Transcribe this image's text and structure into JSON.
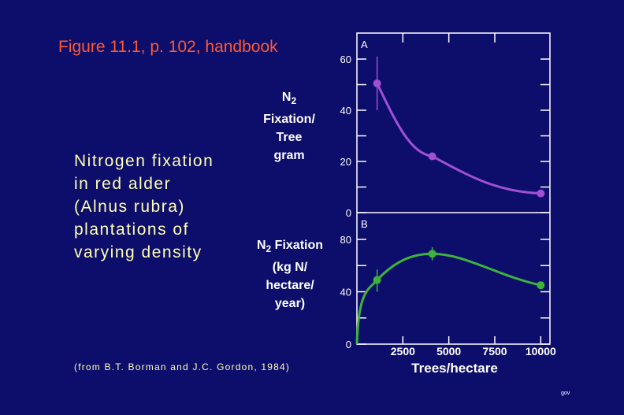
{
  "figure_title": "Figure 11.1, p. 102, handbook",
  "subject_lines": [
    "Nitrogen fixation",
    "in red alder",
    "(Alnus rubra)",
    "plantations of",
    "varying density"
  ],
  "source_note": "(from B.T. Borman and J.C. Gordon, 1984)",
  "corner_text": "gov",
  "chart_data": [
    {
      "type": "line",
      "panel_label": "A",
      "ylabel_lines": [
        "Fixation/",
        "Tree",
        "gram"
      ],
      "ylabel_prefix": "N",
      "ylabel_sub": "2",
      "ylim": [
        0,
        60
      ],
      "yticks": [
        0,
        20,
        40,
        60
      ],
      "xlim": [
        0,
        10500
      ],
      "color": "#a050d2",
      "series": [
        {
          "x": [
            1100,
            4100,
            10000
          ],
          "y": [
            50.5,
            22,
            7.5
          ]
        }
      ],
      "error_bars": [
        {
          "x": 1100,
          "low": 40,
          "high": 61
        }
      ]
    },
    {
      "type": "line",
      "panel_label": "B",
      "ylabel_line1": "Fixation",
      "ylabel_prefix": "N",
      "ylabel_sub": "2",
      "ylabel_lines": [
        "(kg N/",
        "hectare/",
        "year)"
      ],
      "ylim": [
        0,
        80
      ],
      "yticks": [
        0,
        40,
        80
      ],
      "xlim": [
        0,
        10500
      ],
      "xticks": [
        2500,
        5000,
        7500,
        10000
      ],
      "xlabel": "Trees/hectare",
      "color": "#3cb43c",
      "series": [
        {
          "x": [
            1100,
            4100,
            10000
          ],
          "y": [
            49,
            69,
            45
          ]
        }
      ],
      "error_bars": [
        {
          "x": 1100,
          "low": 40,
          "high": 57
        },
        {
          "x": 4100,
          "low": 64,
          "high": 74
        }
      ],
      "curve_start": [
        0,
        0
      ]
    }
  ]
}
